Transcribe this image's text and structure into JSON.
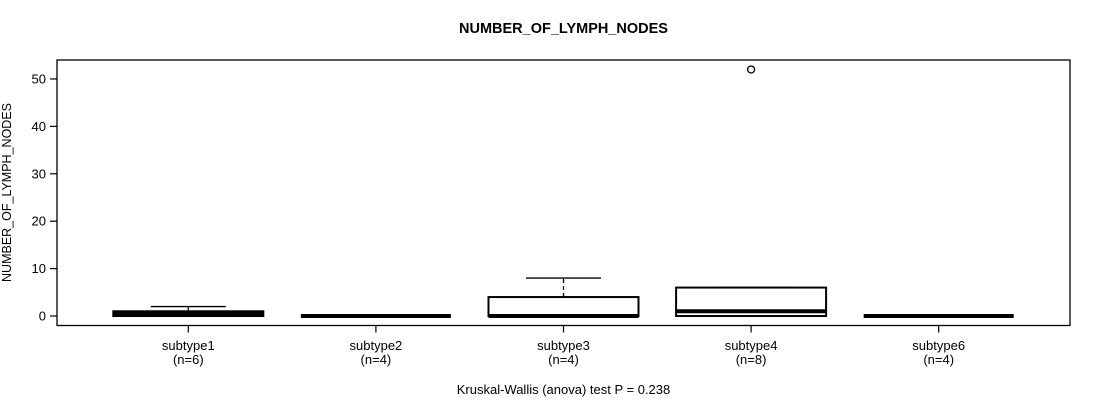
{
  "chart_data": {
    "type": "boxplot",
    "title": "NUMBER_OF_LYMPH_NODES",
    "ylabel": "NUMBER_OF_LYMPH_NODES",
    "xlabel": "",
    "caption": "Kruskal-Wallis (anova) test P = 0.238",
    "y_ticks": [
      0,
      10,
      20,
      30,
      40,
      50
    ],
    "ylim": [
      -2.0,
      54.0
    ],
    "grid": false,
    "legend": "none",
    "colors": {
      "box_border": "#000000",
      "box_fill": "#ffffff",
      "median": "#000000",
      "axis": "#000000",
      "background": "#ffffff"
    },
    "groups": [
      {
        "label": "subtype1",
        "n_label": "(n=6)",
        "q1": 0,
        "median": 0.5,
        "q3": 1,
        "whisker_low": 0,
        "whisker_high": 2,
        "outliers": []
      },
      {
        "label": "subtype2",
        "n_label": "(n=4)",
        "q1": 0,
        "median": 0,
        "q3": 0,
        "whisker_low": 0,
        "whisker_high": 0,
        "outliers": []
      },
      {
        "label": "subtype3",
        "n_label": "(n=4)",
        "q1": 0,
        "median": 0,
        "q3": 4,
        "whisker_low": 0,
        "whisker_high": 8,
        "outliers": []
      },
      {
        "label": "subtype4",
        "n_label": "(n=8)",
        "q1": 0,
        "median": 1,
        "q3": 6,
        "whisker_low": 0,
        "whisker_high": 6,
        "outliers": [
          52
        ]
      },
      {
        "label": "subtype6",
        "n_label": "(n=4)",
        "q1": 0,
        "median": 0,
        "q3": 0,
        "whisker_low": 0,
        "whisker_high": 0,
        "outliers": []
      }
    ]
  }
}
